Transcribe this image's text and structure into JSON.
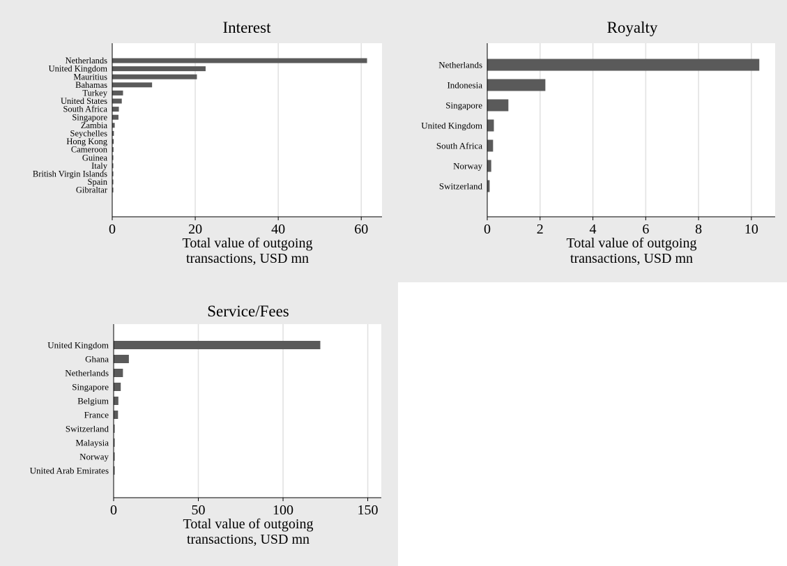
{
  "chart_data": [
    {
      "type": "bar",
      "orientation": "horizontal",
      "title": "Interest",
      "xlabel": [
        "Total value of outgoing",
        "transactions, USD mn"
      ],
      "xlim": [
        0,
        65
      ],
      "xticks": [
        0,
        20,
        40,
        60
      ],
      "grid": true,
      "categories": [
        "Netherlands",
        "United Kingdom",
        "Mauritius",
        "Bahamas",
        "Turkey",
        "United States",
        "South Africa",
        "Singapore",
        "Zambia",
        "Seychelles",
        "Hong Kong",
        "Cameroon",
        "Guinea",
        "Italy",
        "British Virgin Islands",
        "Spain",
        "Gibraltar"
      ],
      "values": [
        61.4,
        22.5,
        20.4,
        9.6,
        2.6,
        2.3,
        1.6,
        1.5,
        0.6,
        0.4,
        0.35,
        0.3,
        0.2,
        0.15,
        0.15,
        0.1,
        0.1
      ]
    },
    {
      "type": "bar",
      "orientation": "horizontal",
      "title": "Royalty",
      "xlabel": [
        "Total value of outgoing",
        "transactions, USD mn"
      ],
      "xlim": [
        0,
        10.9
      ],
      "xticks": [
        0,
        2,
        4,
        6,
        8,
        10
      ],
      "grid": true,
      "categories": [
        "Netherlands",
        "Indonesia",
        "Singapore",
        "United Kingdom",
        "South Africa",
        "Norway",
        "Switzerland"
      ],
      "values": [
        10.3,
        2.2,
        0.8,
        0.25,
        0.22,
        0.15,
        0.09
      ]
    },
    {
      "type": "bar",
      "orientation": "horizontal",
      "title": "Service/Fees",
      "xlabel": [
        "Total value of outgoing",
        "transactions, USD mn"
      ],
      "xlim": [
        0,
        158
      ],
      "xticks": [
        0,
        50,
        100,
        150
      ],
      "grid": true,
      "categories": [
        "United Kingdom",
        "Ghana",
        "Netherlands",
        "Singapore",
        "Belgium",
        "France",
        "Switzerland",
        "Malaysia",
        "Norway",
        "United Arab Emirates"
      ],
      "values": [
        122,
        9,
        5.5,
        4.2,
        2.8,
        2.6,
        0.6,
        0.5,
        0.5,
        0.4
      ]
    }
  ]
}
